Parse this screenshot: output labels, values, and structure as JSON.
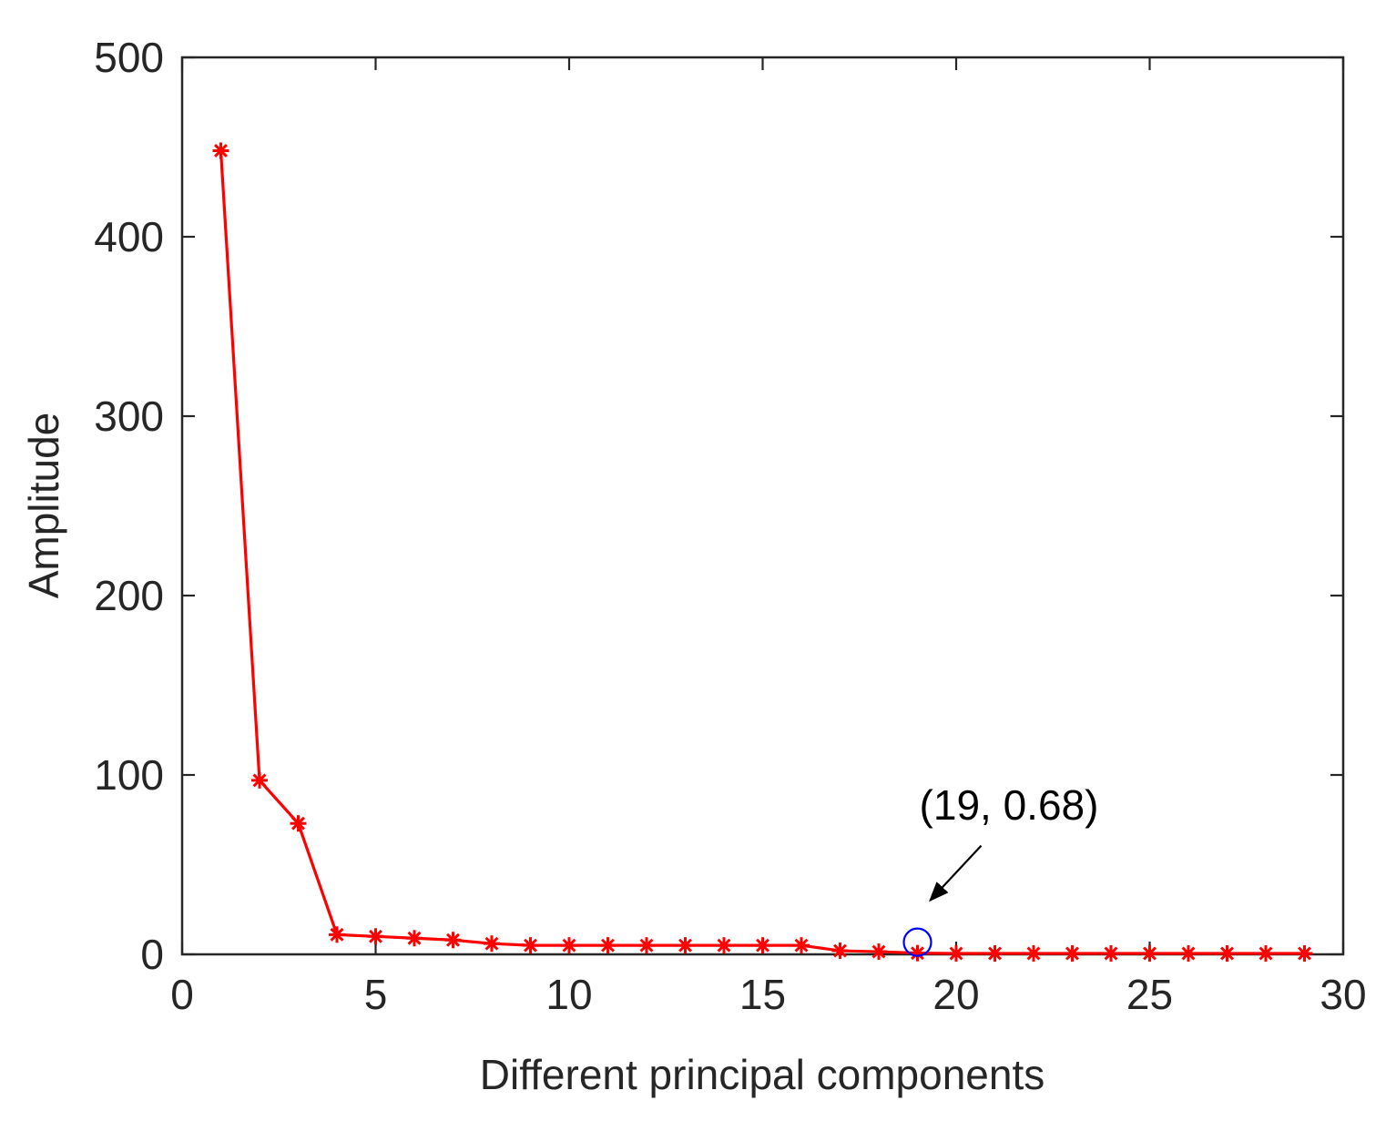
{
  "chart_data": {
    "type": "line",
    "xlabel": "Different principal components",
    "ylabel": "Amplitude",
    "xlim": [
      0,
      30
    ],
    "ylim": [
      0,
      500
    ],
    "xticks": [
      "0",
      "5",
      "10",
      "15",
      "20",
      "25",
      "30"
    ],
    "yticks": [
      "0",
      "100",
      "200",
      "300",
      "400",
      "500"
    ],
    "grid": false,
    "series": [
      {
        "color": "#ff0000",
        "marker": "asterisk",
        "x": [
          1,
          2,
          3,
          4,
          5,
          6,
          7,
          8,
          9,
          10,
          11,
          12,
          13,
          14,
          15,
          16,
          17,
          18,
          19,
          20,
          21,
          22,
          23,
          24,
          25,
          26,
          27,
          28,
          29
        ],
        "y": [
          448,
          97,
          73,
          11,
          10,
          9,
          8,
          6,
          5,
          5,
          5,
          5,
          5,
          5,
          5,
          5,
          2,
          1.5,
          0.68,
          0.5,
          0.5,
          0.5,
          0.5,
          0.5,
          0.5,
          0.5,
          0.5,
          0.5,
          0.5
        ]
      }
    ],
    "highlight": {
      "x": 19,
      "y": 0.68,
      "color": "#0000ff",
      "marker": "circle"
    },
    "annotation": {
      "text": "(19, 0.68)",
      "points_to_x": 19,
      "points_to_y": 0.68
    }
  }
}
